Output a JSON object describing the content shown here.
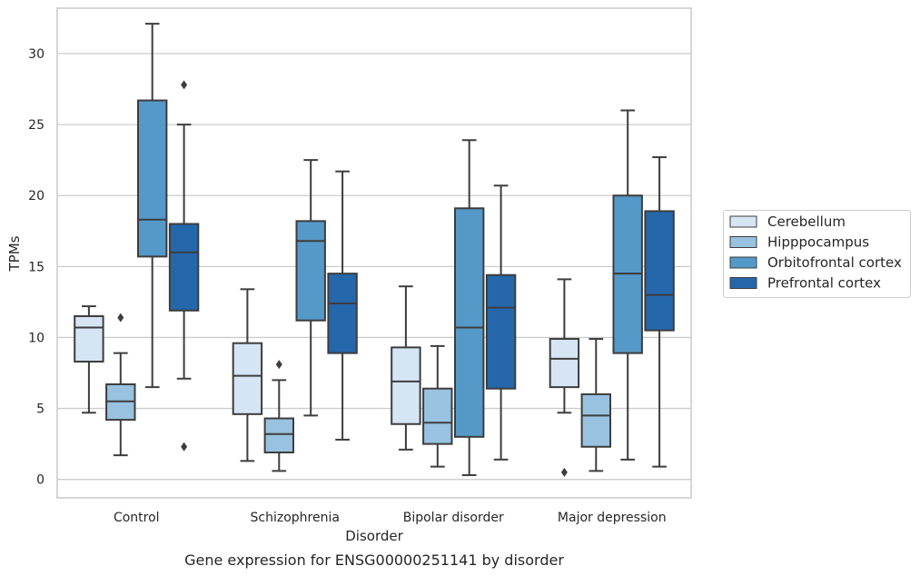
{
  "chart_data": {
    "type": "box",
    "title": "Gene expression for ENSG00000251141 by disorder",
    "xlabel": "Disorder",
    "ylabel": "TPMs",
    "ylim": [
      -1.3,
      33.2
    ],
    "yticks": [
      0,
      5,
      10,
      15,
      20,
      25,
      30
    ],
    "grid": "horizontal",
    "legend_position": "right",
    "categories": [
      "Control",
      "Schizophrenia",
      "Bipolar disorder",
      "Major depression"
    ],
    "series": [
      {
        "name": "Cerebellum",
        "color": "#d6e5f4",
        "boxes": [
          {
            "whislo": 4.7,
            "q1": 8.3,
            "med": 10.7,
            "q3": 11.5,
            "whishi": 12.2,
            "fliers": []
          },
          {
            "whislo": 1.3,
            "q1": 4.6,
            "med": 7.3,
            "q3": 9.6,
            "whishi": 13.4,
            "fliers": []
          },
          {
            "whislo": 2.1,
            "q1": 3.9,
            "med": 6.9,
            "q3": 9.3,
            "whishi": 13.6,
            "fliers": []
          },
          {
            "whislo": 4.7,
            "q1": 6.5,
            "med": 8.5,
            "q3": 9.9,
            "whishi": 14.1,
            "fliers": [
              0.5
            ]
          }
        ]
      },
      {
        "name": "Hipppocampus",
        "color": "#98c2df",
        "boxes": [
          {
            "whislo": 1.7,
            "q1": 4.2,
            "med": 5.5,
            "q3": 6.7,
            "whishi": 8.9,
            "fliers": [
              11.4
            ]
          },
          {
            "whislo": 0.6,
            "q1": 1.9,
            "med": 3.2,
            "q3": 4.3,
            "whishi": 7.0,
            "fliers": [
              8.1
            ]
          },
          {
            "whislo": 0.9,
            "q1": 2.5,
            "med": 4.0,
            "q3": 6.4,
            "whishi": 9.4,
            "fliers": []
          },
          {
            "whislo": 0.6,
            "q1": 2.3,
            "med": 4.5,
            "q3": 6.0,
            "whishi": 9.9,
            "fliers": []
          }
        ]
      },
      {
        "name": "Orbitofrontal cortex",
        "color": "#5599c8",
        "boxes": [
          {
            "whislo": 6.5,
            "q1": 15.7,
            "med": 18.3,
            "q3": 26.7,
            "whishi": 32.1,
            "fliers": []
          },
          {
            "whislo": 4.5,
            "q1": 11.2,
            "med": 16.8,
            "q3": 18.2,
            "whishi": 22.5,
            "fliers": []
          },
          {
            "whislo": 0.3,
            "q1": 3.0,
            "med": 10.7,
            "q3": 19.1,
            "whishi": 23.9,
            "fliers": []
          },
          {
            "whislo": 1.4,
            "q1": 8.9,
            "med": 14.5,
            "q3": 20.0,
            "whishi": 26.0,
            "fliers": []
          }
        ]
      },
      {
        "name": "Prefrontal cortex",
        "color": "#2567ab",
        "boxes": [
          {
            "whislo": 7.1,
            "q1": 11.9,
            "med": 16.0,
            "q3": 18.0,
            "whishi": 25.0,
            "fliers": [
              27.8,
              2.3
            ]
          },
          {
            "whislo": 2.8,
            "q1": 8.9,
            "med": 12.4,
            "q3": 14.5,
            "whishi": 21.7,
            "fliers": []
          },
          {
            "whislo": 1.4,
            "q1": 6.4,
            "med": 12.1,
            "q3": 14.4,
            "whishi": 20.7,
            "fliers": []
          },
          {
            "whislo": 0.9,
            "q1": 10.5,
            "med": 13.0,
            "q3": 18.9,
            "whishi": 22.7,
            "fliers": []
          }
        ]
      }
    ]
  }
}
